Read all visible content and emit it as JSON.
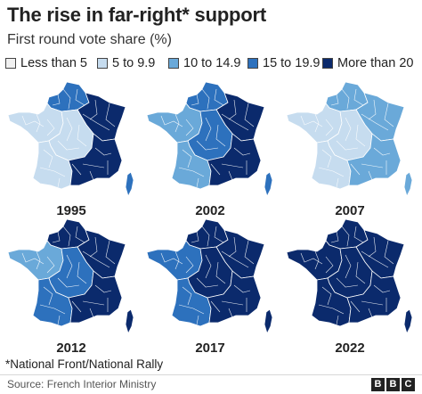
{
  "title": "The rise in far-right* support",
  "subtitle": "First round vote share (%)",
  "colors": {
    "c0": "#f0f0f0",
    "c1": "#c6dcef",
    "c2": "#6aa9d9",
    "c3": "#2d71bd",
    "c4": "#0b2a6c",
    "border": "#ffffff"
  },
  "legend": [
    {
      "label": "Less than 5",
      "color": "c0"
    },
    {
      "label": "5 to 9.9",
      "color": "c1"
    },
    {
      "label": "10 to 14.9",
      "color": "c2"
    },
    {
      "label": "15 to 19.9",
      "color": "c3"
    },
    {
      "label": "More than 20",
      "color": "c4"
    }
  ],
  "maps": [
    {
      "year": "1995",
      "regions": {
        "north": "c3",
        "northeast": "c4",
        "west": "c1",
        "center": "c1",
        "southwest": "c1",
        "southeast": "c4",
        "corsica": "c3"
      }
    },
    {
      "year": "2002",
      "regions": {
        "north": "c3",
        "northeast": "c4",
        "west": "c2",
        "center": "c3",
        "southwest": "c2",
        "southeast": "c4",
        "corsica": "c3"
      }
    },
    {
      "year": "2007",
      "regions": {
        "north": "c2",
        "northeast": "c2",
        "west": "c1",
        "center": "c1",
        "southwest": "c1",
        "southeast": "c2",
        "corsica": "c2"
      }
    },
    {
      "year": "2012",
      "regions": {
        "north": "c4",
        "northeast": "c4",
        "west": "c2",
        "center": "c3",
        "southwest": "c3",
        "southeast": "c4",
        "corsica": "c4"
      }
    },
    {
      "year": "2017",
      "regions": {
        "north": "c4",
        "northeast": "c4",
        "west": "c3",
        "center": "c4",
        "southwest": "c3",
        "southeast": "c4",
        "corsica": "c4"
      }
    },
    {
      "year": "2022",
      "regions": {
        "north": "c4",
        "northeast": "c4",
        "west": "c4",
        "center": "c4",
        "southwest": "c4",
        "southeast": "c4",
        "corsica": "c4"
      }
    }
  ],
  "footnote": "*National Front/National Rally",
  "source": "Source: French Interior Ministry",
  "logo": [
    "B",
    "B",
    "C"
  ]
}
